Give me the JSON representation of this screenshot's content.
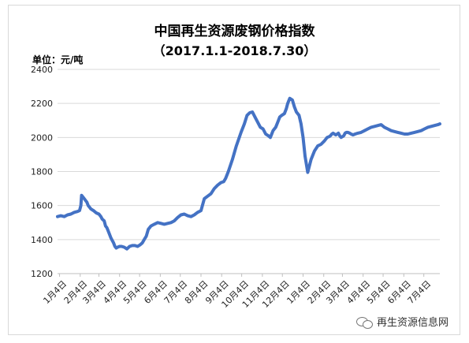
{
  "title": "中国再生资源废钢价格指数",
  "subtitle": "（2017.1.1-2018.7.30）",
  "unit_label": "单位：元/吨",
  "watermark": "再生资源信息网",
  "chart_data": {
    "type": "line",
    "title": "中国再生资源废钢价格指数",
    "subtitle": "（2017.1.1-2018.7.30）",
    "ylabel": "单位：元/吨",
    "ylim": [
      1200,
      2400
    ],
    "yticks": [
      1200,
      1400,
      1600,
      1800,
      2000,
      2200,
      2400
    ],
    "xlim": [
      0,
      573
    ],
    "x_ticks": [
      {
        "x": 3,
        "label": "1月4日"
      },
      {
        "x": 34,
        "label": "2月4日"
      },
      {
        "x": 62,
        "label": "3月4日"
      },
      {
        "x": 93,
        "label": "4月4日"
      },
      {
        "x": 123,
        "label": "5月4日"
      },
      {
        "x": 154,
        "label": "6月4日"
      },
      {
        "x": 184,
        "label": "7月4日"
      },
      {
        "x": 215,
        "label": "8月4日"
      },
      {
        "x": 246,
        "label": "9月4日"
      },
      {
        "x": 276,
        "label": "10月4日"
      },
      {
        "x": 307,
        "label": "11月4日"
      },
      {
        "x": 337,
        "label": "12月4日"
      },
      {
        "x": 368,
        "label": "1月4日"
      },
      {
        "x": 399,
        "label": "2月4日"
      },
      {
        "x": 427,
        "label": "3月4日"
      },
      {
        "x": 458,
        "label": "4月4日"
      },
      {
        "x": 488,
        "label": "5月4日"
      },
      {
        "x": 519,
        "label": "6月4日"
      },
      {
        "x": 549,
        "label": "7月4日"
      }
    ],
    "grid": true,
    "line_color": "#4472c4",
    "series": [
      {
        "name": "",
        "x": [
          0,
          5,
          10,
          15,
          20,
          25,
          30,
          33,
          35,
          36,
          38,
          40,
          42,
          44,
          46,
          48,
          50,
          52,
          54,
          57,
          59,
          62,
          65,
          67,
          70,
          72,
          74,
          77,
          80,
          82,
          84,
          86,
          88,
          90,
          93,
          96,
          100,
          104,
          108,
          112,
          116,
          120,
          124,
          127,
          130,
          133,
          136,
          140,
          145,
          150,
          155,
          160,
          165,
          170,
          175,
          180,
          185,
          190,
          195,
          200,
          205,
          210,
          215,
          220,
          225,
          230,
          235,
          240,
          245,
          249,
          252,
          256,
          262,
          268,
          275,
          280,
          284,
          288,
          292,
          296,
          300,
          304,
          308,
          312,
          316,
          319,
          321,
          323,
          325,
          327,
          329,
          331,
          333,
          336,
          340,
          343,
          345,
          348,
          352,
          355,
          358,
          362,
          365,
          368,
          371,
          375,
          380,
          385,
          390,
          395,
          400,
          404,
          407,
          409,
          411,
          413,
          415,
          417,
          419,
          421,
          423,
          425,
          427,
          429,
          431,
          433,
          435,
          438,
          440,
          443,
          446,
          450,
          455,
          460,
          465,
          470,
          475,
          480,
          485,
          490,
          495,
          500,
          505,
          510,
          515,
          520,
          525,
          530,
          535,
          540,
          545,
          550,
          555,
          560,
          565,
          570,
          573
        ],
        "y": [
          1535,
          1540,
          1535,
          1545,
          1550,
          1560,
          1565,
          1570,
          1600,
          1660,
          1650,
          1640,
          1630,
          1620,
          1600,
          1590,
          1580,
          1575,
          1570,
          1560,
          1555,
          1550,
          1535,
          1520,
          1510,
          1480,
          1470,
          1440,
          1410,
          1395,
          1380,
          1360,
          1350,
          1355,
          1360,
          1360,
          1355,
          1345,
          1360,
          1365,
          1365,
          1360,
          1370,
          1380,
          1400,
          1420,
          1460,
          1480,
          1490,
          1500,
          1495,
          1490,
          1495,
          1500,
          1510,
          1530,
          1545,
          1550,
          1540,
          1535,
          1545,
          1560,
          1570,
          1640,
          1655,
          1670,
          1700,
          1720,
          1735,
          1740,
          1760,
          1800,
          1870,
          1950,
          2030,
          2080,
          2130,
          2145,
          2150,
          2120,
          2090,
          2060,
          2050,
          2020,
          2010,
          2000,
          2020,
          2040,
          2050,
          2060,
          2080,
          2100,
          2120,
          2130,
          2140,
          2170,
          2200,
          2230,
          2220,
          2180,
          2150,
          2130,
          2080,
          2000,
          1890,
          1795,
          1870,
          1920,
          1950,
          1960,
          1980,
          2000,
          2005,
          2010,
          2020,
          2025,
          2020,
          2015,
          2020,
          2025,
          2010,
          2000,
          2005,
          2010,
          2025,
          2030,
          2030,
          2025,
          2020,
          2015,
          2020,
          2025,
          2030,
          2040,
          2050,
          2060,
          2065,
          2070,
          2075,
          2060,
          2050,
          2040,
          2035,
          2030,
          2025,
          2020,
          2020,
          2025,
          2030,
          2035,
          2040,
          2050,
          2060,
          2065,
          2070,
          2075,
          2080
        ]
      }
    ]
  }
}
